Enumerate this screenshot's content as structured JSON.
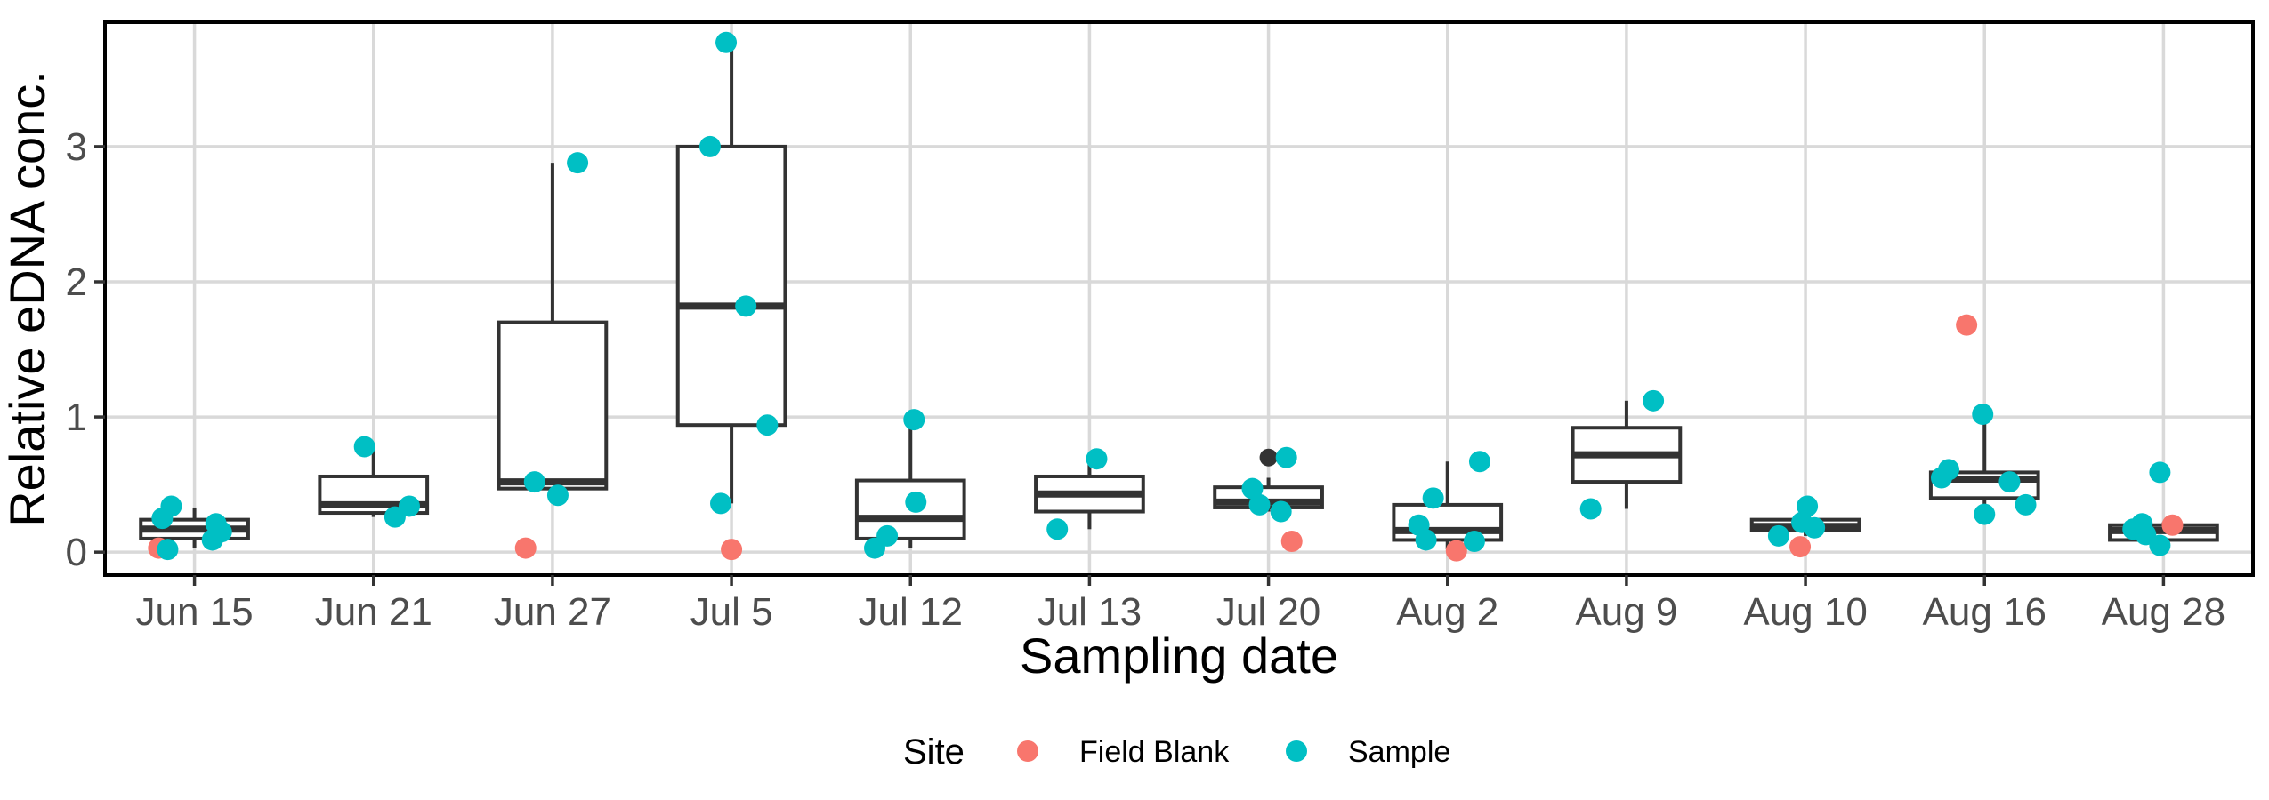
{
  "chart_data": {
    "type": "boxplot",
    "xlabel": "Sampling date",
    "ylabel": "Relative eDNA conc.",
    "ylim": [
      -0.17,
      3.92
    ],
    "yticks": [
      0,
      1,
      2,
      3
    ],
    "categories": [
      "Jun 15",
      "Jun 21",
      "Jun 27",
      "Jul 5",
      "Jul 12",
      "Jul 13",
      "Jul 20",
      "Aug 2",
      "Aug 9",
      "Aug 10",
      "Aug 16",
      "Aug 28"
    ],
    "grid": true,
    "boxes": [
      {
        "date": "Jun 15",
        "whisker_low": 0.03,
        "q1": 0.1,
        "median": 0.17,
        "q3": 0.24,
        "whisker_high": 0.33
      },
      {
        "date": "Jun 21",
        "whisker_low": 0.26,
        "q1": 0.29,
        "median": 0.35,
        "q3": 0.56,
        "whisker_high": 0.78
      },
      {
        "date": "Jun 27",
        "whisker_low": 0.42,
        "q1": 0.47,
        "median": 0.52,
        "q3": 1.7,
        "whisker_high": 2.88
      },
      {
        "date": "Jul 5",
        "whisker_low": 0.36,
        "q1": 0.94,
        "median": 1.82,
        "q3": 3.0,
        "whisker_high": 3.77
      },
      {
        "date": "Jul 12",
        "whisker_low": 0.03,
        "q1": 0.1,
        "median": 0.25,
        "q3": 0.53,
        "whisker_high": 0.98
      },
      {
        "date": "Jul 13",
        "whisker_low": 0.17,
        "q1": 0.3,
        "median": 0.43,
        "q3": 0.56,
        "whisker_high": 0.69
      },
      {
        "date": "Jul 20",
        "whisker_low": 0.3,
        "q1": 0.33,
        "median": 0.37,
        "q3": 0.48,
        "whisker_high": 0.55
      },
      {
        "date": "Aug 2",
        "whisker_low": 0.02,
        "q1": 0.09,
        "median": 0.16,
        "q3": 0.35,
        "whisker_high": 0.67
      },
      {
        "date": "Aug 9",
        "whisker_low": 0.32,
        "q1": 0.52,
        "median": 0.72,
        "q3": 0.92,
        "whisker_high": 1.12
      },
      {
        "date": "Aug 10",
        "whisker_low": 0.12,
        "q1": 0.16,
        "median": 0.19,
        "q3": 0.24,
        "whisker_high": 0.26
      },
      {
        "date": "Aug 16",
        "whisker_low": 0.28,
        "q1": 0.4,
        "median": 0.54,
        "q3": 0.59,
        "whisker_high": 1.02
      },
      {
        "date": "Aug 28",
        "whisker_low": 0.05,
        "q1": 0.09,
        "median": 0.16,
        "q3": 0.2,
        "whisker_high": 0.22
      }
    ],
    "outliers": [
      {
        "date": "Jul 20",
        "y": 0.7
      }
    ],
    "series": [
      {
        "name": "Field Blank",
        "color": "#F8766D",
        "points": [
          {
            "date": "Jun 15",
            "y": 0.03,
            "jitter": -0.2
          },
          {
            "date": "Jun 27",
            "y": 0.03,
            "jitter": -0.15
          },
          {
            "date": "Jul 5",
            "y": 0.02,
            "jitter": 0.0
          },
          {
            "date": "Jul 20",
            "y": 0.08,
            "jitter": 0.13
          },
          {
            "date": "Aug 2",
            "y": 0.01,
            "jitter": 0.05
          },
          {
            "date": "Aug 10",
            "y": 0.04,
            "jitter": -0.03
          },
          {
            "date": "Aug 16",
            "y": 1.68,
            "jitter": -0.1
          },
          {
            "date": "Aug 28",
            "y": 0.2,
            "jitter": 0.05
          }
        ]
      },
      {
        "name": "Sample",
        "color": "#00BFC4",
        "points": [
          {
            "date": "Jun 15",
            "y": 0.34,
            "jitter": -0.13
          },
          {
            "date": "Jun 15",
            "y": 0.25,
            "jitter": -0.18
          },
          {
            "date": "Jun 15",
            "y": 0.02,
            "jitter": -0.15
          },
          {
            "date": "Jun 15",
            "y": 0.21,
            "jitter": 0.12
          },
          {
            "date": "Jun 15",
            "y": 0.15,
            "jitter": 0.15
          },
          {
            "date": "Jun 15",
            "y": 0.09,
            "jitter": 0.1
          },
          {
            "date": "Jun 21",
            "y": 0.78,
            "jitter": -0.05
          },
          {
            "date": "Jun 21",
            "y": 0.34,
            "jitter": 0.2
          },
          {
            "date": "Jun 21",
            "y": 0.26,
            "jitter": 0.12
          },
          {
            "date": "Jun 27",
            "y": 2.88,
            "jitter": 0.14
          },
          {
            "date": "Jun 27",
            "y": 0.52,
            "jitter": -0.1
          },
          {
            "date": "Jun 27",
            "y": 0.42,
            "jitter": 0.03
          },
          {
            "date": "Jul 5",
            "y": 3.77,
            "jitter": -0.03
          },
          {
            "date": "Jul 5",
            "y": 3.0,
            "jitter": -0.12
          },
          {
            "date": "Jul 5",
            "y": 1.82,
            "jitter": 0.08
          },
          {
            "date": "Jul 5",
            "y": 0.94,
            "jitter": 0.2
          },
          {
            "date": "Jul 5",
            "y": 0.36,
            "jitter": -0.06
          },
          {
            "date": "Jul 12",
            "y": 0.98,
            "jitter": 0.02
          },
          {
            "date": "Jul 12",
            "y": 0.37,
            "jitter": 0.03
          },
          {
            "date": "Jul 12",
            "y": 0.12,
            "jitter": -0.13
          },
          {
            "date": "Jul 12",
            "y": 0.03,
            "jitter": -0.2
          },
          {
            "date": "Jul 13",
            "y": 0.69,
            "jitter": 0.04
          },
          {
            "date": "Jul 13",
            "y": 0.17,
            "jitter": -0.18
          },
          {
            "date": "Jul 20",
            "y": 0.7,
            "jitter": 0.1
          },
          {
            "date": "Jul 20",
            "y": 0.47,
            "jitter": -0.09
          },
          {
            "date": "Jul 20",
            "y": 0.35,
            "jitter": -0.05
          },
          {
            "date": "Jul 20",
            "y": 0.3,
            "jitter": 0.07
          },
          {
            "date": "Aug 2",
            "y": 0.67,
            "jitter": 0.18
          },
          {
            "date": "Aug 2",
            "y": 0.4,
            "jitter": -0.08
          },
          {
            "date": "Aug 2",
            "y": 0.2,
            "jitter": -0.16
          },
          {
            "date": "Aug 2",
            "y": 0.09,
            "jitter": -0.12
          },
          {
            "date": "Aug 2",
            "y": 0.08,
            "jitter": 0.15
          },
          {
            "date": "Aug 9",
            "y": 1.12,
            "jitter": 0.15
          },
          {
            "date": "Aug 9",
            "y": 0.32,
            "jitter": -0.2
          },
          {
            "date": "Aug 10",
            "y": 0.34,
            "jitter": 0.01
          },
          {
            "date": "Aug 10",
            "y": 0.22,
            "jitter": -0.02
          },
          {
            "date": "Aug 10",
            "y": 0.18,
            "jitter": 0.05
          },
          {
            "date": "Aug 10",
            "y": 0.12,
            "jitter": -0.15
          },
          {
            "date": "Aug 16",
            "y": 1.02,
            "jitter": -0.01
          },
          {
            "date": "Aug 16",
            "y": 0.61,
            "jitter": -0.2
          },
          {
            "date": "Aug 16",
            "y": 0.55,
            "jitter": -0.24
          },
          {
            "date": "Aug 16",
            "y": 0.52,
            "jitter": 0.14
          },
          {
            "date": "Aug 16",
            "y": 0.35,
            "jitter": 0.23
          },
          {
            "date": "Aug 16",
            "y": 0.28,
            "jitter": 0.0
          },
          {
            "date": "Aug 28",
            "y": 0.59,
            "jitter": -0.02
          },
          {
            "date": "Aug 28",
            "y": 0.21,
            "jitter": -0.12
          },
          {
            "date": "Aug 28",
            "y": 0.17,
            "jitter": -0.17
          },
          {
            "date": "Aug 28",
            "y": 0.13,
            "jitter": -0.1
          },
          {
            "date": "Aug 28",
            "y": 0.05,
            "jitter": -0.02
          }
        ]
      }
    ],
    "legend": {
      "title": "Site",
      "position": "bottom",
      "entries": [
        {
          "label": "Field Blank",
          "color": "#F8766D"
        },
        {
          "label": "Sample",
          "color": "#00BFC4"
        }
      ]
    },
    "colors": {
      "box_stroke": "#333333",
      "grid": "#d9d9d9",
      "outlier": "#333333",
      "panel_border": "#000000"
    }
  }
}
